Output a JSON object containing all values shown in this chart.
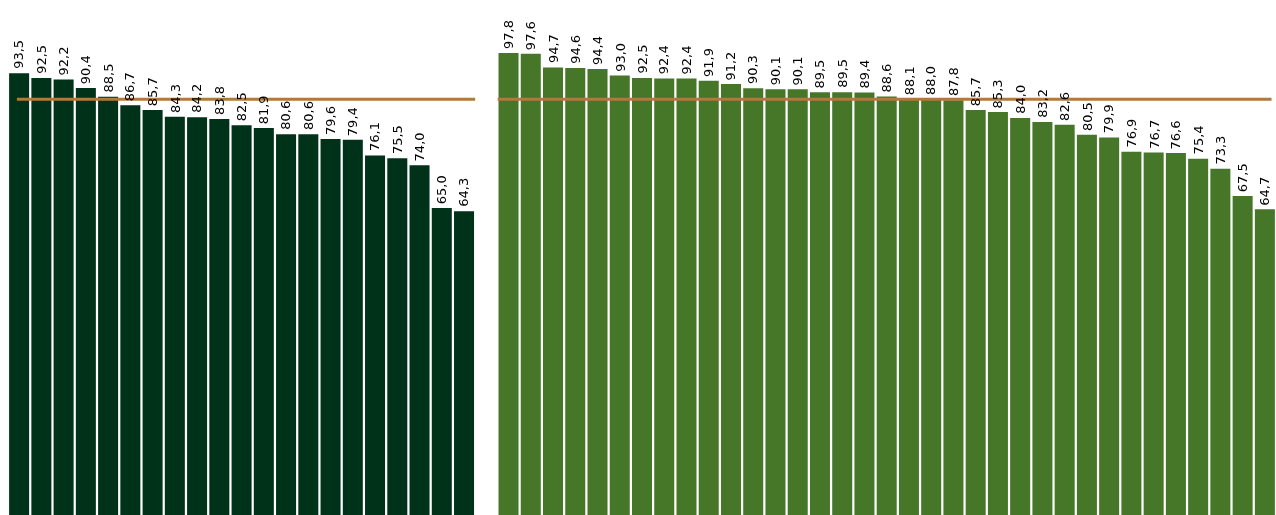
{
  "chart_data": [
    {
      "type": "bar",
      "categories": [
        null,
        null,
        null,
        null,
        null,
        null,
        null,
        null,
        null,
        null,
        null,
        null,
        null,
        null,
        null,
        null,
        null,
        null,
        null,
        null,
        null
      ],
      "series": [
        {
          "color": "#00321a",
          "values": [
            93.5,
            92.5,
            92.2,
            90.4,
            88.5,
            86.7,
            85.7,
            84.3,
            84.2,
            83.8,
            82.5,
            81.9,
            80.6,
            80.6,
            79.6,
            79.4,
            76.1,
            75.5,
            74.0,
            65.0,
            64.3
          ],
          "value_labels": [
            "93,5",
            "92,5",
            "92,2",
            "90,4",
            "88,5",
            "86,7",
            "85,7",
            "84,3",
            "84,2",
            "83,8",
            "82,5",
            "81,9",
            "80,6",
            "80,6",
            "79,6",
            "79,4",
            "76,1",
            "75,5",
            "74,0",
            "65,0",
            "64,3"
          ]
        }
      ],
      "ylim": [
        0,
        109
      ],
      "ref_lines": [
        {
          "axis": "y",
          "value": 88.0,
          "color": "#b07a3e"
        }
      ],
      "legend": false,
      "tick_labels": false
    },
    {
      "type": "bar",
      "categories": [
        null,
        null,
        null,
        null,
        null,
        null,
        null,
        null,
        null,
        null,
        null,
        null,
        null,
        null,
        null,
        null,
        null,
        null,
        null,
        null,
        null,
        null,
        null,
        null,
        null,
        null,
        null,
        null,
        null,
        null,
        null,
        null,
        null,
        null,
        null
      ],
      "series": [
        {
          "color": "#467628",
          "values": [
            97.8,
            97.6,
            94.7,
            94.6,
            94.4,
            93.0,
            92.5,
            92.4,
            92.4,
            91.9,
            91.2,
            90.3,
            90.1,
            90.1,
            89.5,
            89.5,
            89.4,
            88.6,
            88.1,
            88.0,
            87.8,
            85.7,
            85.3,
            84.0,
            83.2,
            82.6,
            80.5,
            79.9,
            76.9,
            76.7,
            76.6,
            75.4,
            73.3,
            67.5,
            64.7
          ],
          "value_labels": [
            "97,8",
            "97,6",
            "94,7",
            "94,6",
            "94,4",
            "93,0",
            "92,5",
            "92,4",
            "92,4",
            "91,9",
            "91,2",
            "90,3",
            "90,1",
            "90,1",
            "89,5",
            "89,5",
            "89,4",
            "88,6",
            "88,1",
            "88,0",
            "87,8",
            "85,7",
            "85,3",
            "84,0",
            "83,2",
            "82,6",
            "80,5",
            "79,9",
            "76,9",
            "76,7",
            "76,6",
            "75,4",
            "73,3",
            "67,5",
            "64,7"
          ]
        }
      ],
      "ylim": [
        0,
        109
      ],
      "ref_lines": [
        {
          "axis": "y",
          "value": 88.0,
          "color": "#b07a3e"
        }
      ],
      "legend": false,
      "tick_labels": false
    }
  ]
}
